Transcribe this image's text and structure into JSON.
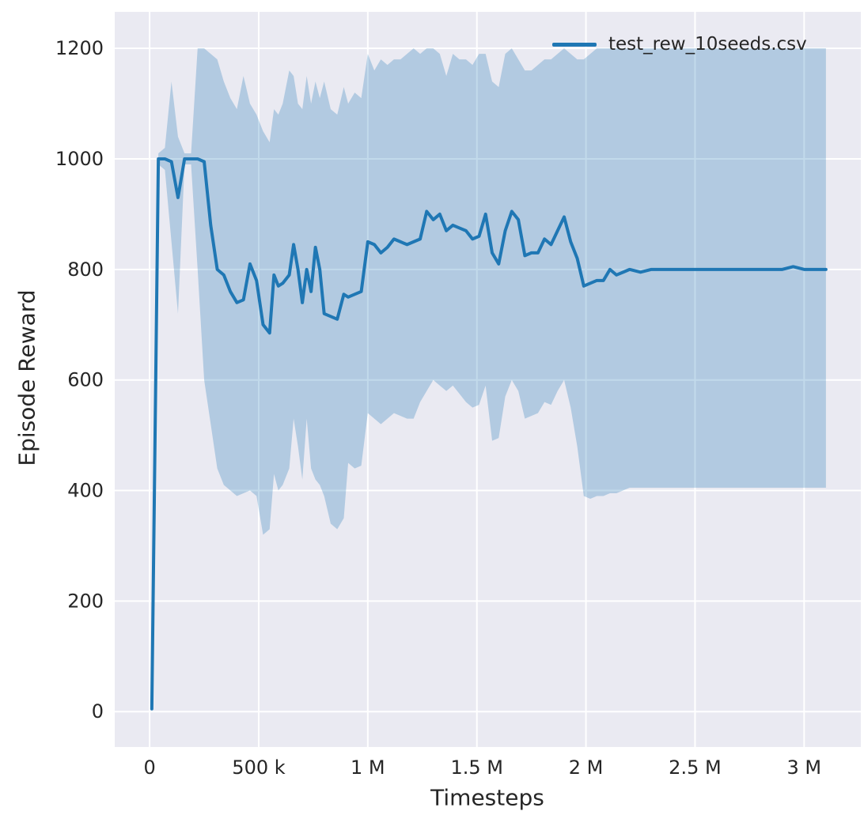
{
  "figure": {
    "xlabel": "Timesteps",
    "ylabel": "Episode Reward",
    "legend": {
      "label": "test_rew_10seeds.csv"
    }
  },
  "chart_data": {
    "type": "line",
    "title": "",
    "xlabel": "Timesteps",
    "ylabel": "Episode Reward",
    "legend_entries": [
      "test_rew_10seeds.csv"
    ],
    "legend_position": "upper right",
    "grid": true,
    "background_color": "#eaeaf2",
    "grid_color": "#ffffff",
    "line_color": "#1f77b4",
    "band_color": "#1f77b4",
    "band_opacity": 0.27,
    "text_color": "#262626",
    "xlim": [
      -160000,
      3260000
    ],
    "ylim": [
      -64,
      1266
    ],
    "x_ticks": [
      {
        "value": 0,
        "label": "0"
      },
      {
        "value": 500000,
        "label": "500 k"
      },
      {
        "value": 1000000,
        "label": "1 M"
      },
      {
        "value": 1500000,
        "label": "1.5 M"
      },
      {
        "value": 2000000,
        "label": "2 M"
      },
      {
        "value": 2500000,
        "label": "2.5 M"
      },
      {
        "value": 3000000,
        "label": "3 M"
      }
    ],
    "y_ticks": [
      {
        "value": 0,
        "label": "0"
      },
      {
        "value": 200,
        "label": "200"
      },
      {
        "value": 400,
        "label": "400"
      },
      {
        "value": 600,
        "label": "600"
      },
      {
        "value": 800,
        "label": "800"
      },
      {
        "value": 1000,
        "label": "1000"
      },
      {
        "value": 1200,
        "label": "1200"
      }
    ],
    "series": [
      {
        "name": "test_rew_10seeds.csv",
        "x": [
          10000,
          40000,
          70000,
          100000,
          130000,
          160000,
          190000,
          220000,
          250000,
          280000,
          310000,
          340000,
          370000,
          400000,
          430000,
          460000,
          490000,
          520000,
          550000,
          570000,
          590000,
          610000,
          640000,
          660000,
          680000,
          700000,
          720000,
          740000,
          760000,
          780000,
          800000,
          830000,
          860000,
          890000,
          910000,
          940000,
          970000,
          1000000,
          1030000,
          1060000,
          1090000,
          1120000,
          1150000,
          1180000,
          1210000,
          1240000,
          1270000,
          1300000,
          1330000,
          1360000,
          1390000,
          1420000,
          1450000,
          1480000,
          1510000,
          1540000,
          1570000,
          1600000,
          1630000,
          1660000,
          1690000,
          1720000,
          1750000,
          1780000,
          1810000,
          1840000,
          1870000,
          1900000,
          1930000,
          1960000,
          1990000,
          2020000,
          2050000,
          2080000,
          2110000,
          2140000,
          2170000,
          2200000,
          2250000,
          2300000,
          2400000,
          2500000,
          2600000,
          2700000,
          2800000,
          2900000,
          2950000,
          3000000,
          3100000
        ],
        "mean": [
          5,
          1000,
          1000,
          995,
          930,
          1000,
          1000,
          1000,
          995,
          880,
          800,
          790,
          760,
          740,
          745,
          810,
          780,
          700,
          685,
          790,
          770,
          775,
          790,
          845,
          800,
          740,
          800,
          760,
          840,
          800,
          720,
          715,
          710,
          755,
          750,
          755,
          760,
          850,
          845,
          830,
          840,
          855,
          850,
          845,
          850,
          855,
          905,
          890,
          900,
          870,
          880,
          875,
          870,
          855,
          860,
          900,
          830,
          810,
          870,
          905,
          890,
          825,
          830,
          830,
          855,
          845,
          870,
          895,
          850,
          820,
          770,
          775,
          780,
          780,
          800,
          790,
          795,
          800,
          795,
          800,
          800,
          800,
          800,
          800,
          800,
          800,
          805,
          800,
          800
        ],
        "upper": [
          10,
          1010,
          1020,
          1140,
          1040,
          1010,
          1010,
          1200,
          1200,
          1190,
          1180,
          1140,
          1110,
          1090,
          1150,
          1100,
          1080,
          1050,
          1030,
          1090,
          1080,
          1100,
          1160,
          1150,
          1100,
          1090,
          1150,
          1100,
          1140,
          1110,
          1140,
          1090,
          1080,
          1130,
          1100,
          1120,
          1110,
          1190,
          1160,
          1180,
          1170,
          1180,
          1180,
          1190,
          1200,
          1190,
          1200,
          1200,
          1190,
          1150,
          1190,
          1180,
          1180,
          1170,
          1190,
          1190,
          1140,
          1130,
          1190,
          1200,
          1180,
          1160,
          1160,
          1170,
          1180,
          1180,
          1190,
          1200,
          1190,
          1180,
          1180,
          1190,
          1200,
          1200,
          1200,
          1200,
          1200,
          1200,
          1200,
          1200,
          1200,
          1200,
          1200,
          1200,
          1200,
          1200,
          1200,
          1200,
          1200
        ],
        "lower": [
          0,
          990,
          980,
          850,
          720,
          990,
          990,
          800,
          600,
          520,
          440,
          410,
          400,
          390,
          395,
          400,
          390,
          320,
          330,
          430,
          400,
          410,
          440,
          530,
          480,
          420,
          530,
          440,
          420,
          410,
          390,
          340,
          330,
          350,
          450,
          440,
          445,
          540,
          530,
          520,
          530,
          540,
          535,
          530,
          530,
          560,
          580,
          600,
          590,
          580,
          590,
          575,
          560,
          550,
          555,
          590,
          490,
          495,
          570,
          600,
          580,
          530,
          535,
          540,
          560,
          555,
          580,
          600,
          550,
          480,
          390,
          385,
          390,
          390,
          395,
          395,
          400,
          405,
          405,
          405,
          405,
          405,
          405,
          405,
          405,
          405,
          405,
          405,
          405
        ]
      }
    ]
  }
}
